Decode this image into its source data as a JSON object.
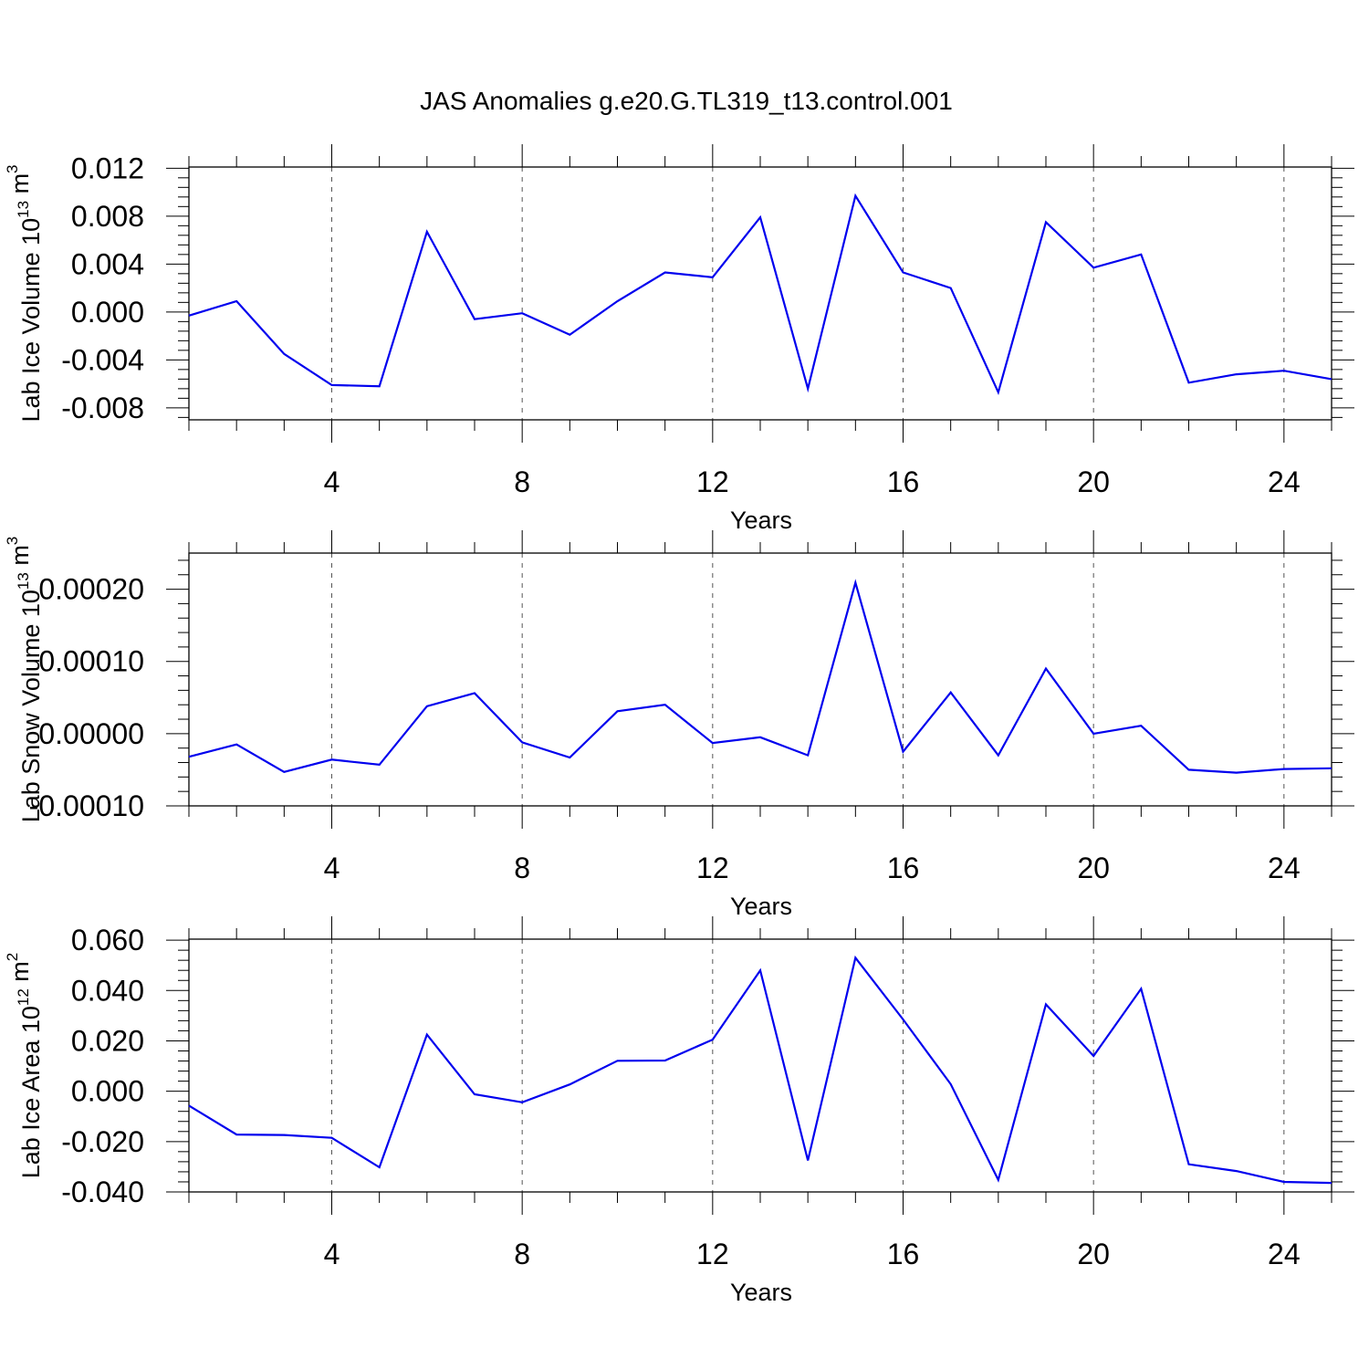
{
  "title": "JAS Anomalies g.e20.G.TL319_t13.control.001",
  "chart_data": [
    {
      "type": "line",
      "ylabel_main": "Lab Ice Volume 10",
      "ylabel_exp": "13",
      "ylabel_unit": " m",
      "ylabel_unit_exp": "3",
      "xlabel": "Years",
      "xlim": [
        1,
        25
      ],
      "ylim": [
        -0.009,
        0.0121
      ],
      "yticks": [
        -0.008,
        -0.004,
        0.0,
        0.004,
        0.008,
        0.012
      ],
      "ytick_labels": [
        "-0.008",
        "-0.004",
        "0.000",
        "0.004",
        "0.008",
        "0.012"
      ],
      "xticks": [
        4,
        8,
        12,
        16,
        20,
        24
      ],
      "xtick_labels": [
        "4",
        "8",
        "12",
        "16",
        "20",
        "24"
      ],
      "x": [
        1,
        2,
        3,
        4,
        5,
        6,
        7,
        8,
        9,
        10,
        11,
        12,
        13,
        14,
        15,
        16,
        17,
        18,
        19,
        20,
        21,
        22,
        23,
        24,
        25
      ],
      "series": [
        {
          "name": "Lab Ice Volume",
          "color": "#0000ee",
          "values": [
            -0.0003,
            0.0009,
            -0.0035,
            -0.0061,
            -0.0062,
            0.0067,
            -0.0006,
            -0.0001,
            -0.0019,
            0.0009,
            0.0033,
            0.0029,
            0.0079,
            -0.0064,
            0.0097,
            0.0033,
            0.002,
            -0.0067,
            0.0075,
            0.0037,
            0.0048,
            -0.0059,
            -0.0052,
            -0.0049,
            -0.0056
          ]
        }
      ]
    },
    {
      "type": "line",
      "ylabel_main": "Lab Snow Volume 10",
      "ylabel_exp": "13",
      "ylabel_unit": " m",
      "ylabel_unit_exp": "3",
      "xlabel": "Years",
      "xlim": [
        1,
        25
      ],
      "ylim": [
        -0.0001,
        0.00025
      ],
      "yticks": [
        -0.0001,
        0.0,
        0.0001,
        0.0002
      ],
      "ytick_labels": [
        "-0.00010",
        "0.00000",
        "0.00010",
        "0.00020"
      ],
      "xticks": [
        4,
        8,
        12,
        16,
        20,
        24
      ],
      "xtick_labels": [
        "4",
        "8",
        "12",
        "16",
        "20",
        "24"
      ],
      "x": [
        1,
        2,
        3,
        4,
        5,
        6,
        7,
        8,
        9,
        10,
        11,
        12,
        13,
        14,
        15,
        16,
        17,
        18,
        19,
        20,
        21,
        22,
        23,
        24,
        25
      ],
      "series": [
        {
          "name": "Lab Snow Volume",
          "color": "#0000ee",
          "values": [
            -3.2e-05,
            -1.5e-05,
            -5.3e-05,
            -3.6e-05,
            -4.3e-05,
            3.8e-05,
            5.6e-05,
            -1.2e-05,
            -3.3e-05,
            3.1e-05,
            4e-05,
            -1.3e-05,
            -5e-06,
            -3e-05,
            0.000209,
            -2.5e-05,
            5.7e-05,
            -3e-05,
            9e-05,
            0.0,
            1.1e-05,
            -5e-05,
            -5.4e-05,
            -4.9e-05,
            -4.8e-05
          ]
        }
      ]
    },
    {
      "type": "line",
      "ylabel_main": "Lab Ice Area 10",
      "ylabel_exp": "12",
      "ylabel_unit": " m",
      "ylabel_unit_exp": "2",
      "xlabel": "Years",
      "xlim": [
        1,
        25
      ],
      "ylim": [
        -0.04,
        0.0604
      ],
      "yticks": [
        -0.04,
        -0.02,
        0.0,
        0.02,
        0.04,
        0.06
      ],
      "ytick_labels": [
        "-0.040",
        "-0.020",
        "0.000",
        "0.020",
        "0.040",
        "0.060"
      ],
      "xticks": [
        4,
        8,
        12,
        16,
        20,
        24
      ],
      "xtick_labels": [
        "4",
        "8",
        "12",
        "16",
        "20",
        "24"
      ],
      "x": [
        1,
        2,
        3,
        4,
        5,
        6,
        7,
        8,
        9,
        10,
        11,
        12,
        13,
        14,
        15,
        16,
        17,
        18,
        19,
        20,
        21,
        22,
        23,
        24,
        25
      ],
      "series": [
        {
          "name": "Lab Ice Area",
          "color": "#0000ee",
          "values": [
            -0.0057,
            -0.0172,
            -0.0174,
            -0.0185,
            -0.0302,
            0.0225,
            -0.0012,
            -0.0044,
            0.0027,
            0.0121,
            0.0122,
            0.0205,
            0.048,
            -0.0275,
            0.053,
            0.0285,
            0.0028,
            -0.0352,
            0.0345,
            0.014,
            0.0407,
            -0.029,
            -0.0317,
            -0.036,
            -0.0364
          ]
        }
      ]
    }
  ]
}
